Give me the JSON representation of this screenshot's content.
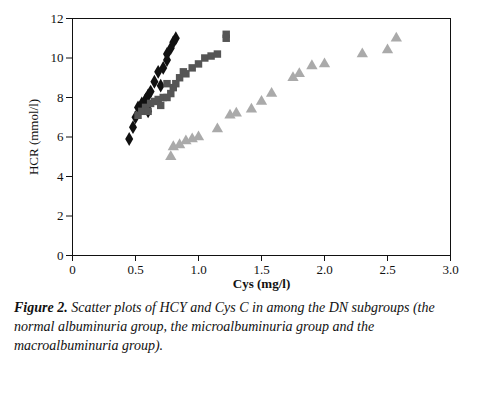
{
  "chart_data": {
    "type": "scatter",
    "x_label": "Cys (mg/l)",
    "y_label": "HCR (mmol/l)",
    "caption_label": "Figure 2.",
    "caption": "Scatter plots of HCY and Cys C in among the DN subgroups (the normal albuminuria group, the microalbuminuria group and the macroalbuminuria group).",
    "xlim": [
      0,
      3
    ],
    "xticks": [
      0,
      0.5,
      {
        "value": 1,
        "label": "1.0"
      },
      1.5,
      {
        "value": 2,
        "label": "2.0"
      },
      2.5,
      {
        "value": 3,
        "label": "3.0"
      }
    ],
    "ylim": [
      0,
      12
    ],
    "yticks": [
      0,
      2,
      4,
      6,
      8,
      10,
      12
    ],
    "series": [
      {
        "color": "#111111",
        "marker": "diamond",
        "x": [
          0.45,
          0.48,
          0.5,
          0.52,
          0.55,
          0.58,
          0.6,
          0.62,
          0.6,
          0.65,
          0.68,
          0.72,
          0.75,
          0.75,
          0.78,
          0.8,
          0.82,
          0.6,
          0.7
        ],
        "values": [
          5.9,
          6.5,
          7.0,
          7.5,
          7.7,
          7.9,
          8.1,
          8.3,
          7.6,
          8.8,
          9.3,
          9.5,
          9.9,
          10.2,
          10.5,
          10.8,
          11.0,
          7.3,
          8.6
        ]
      },
      {
        "color": "#555555",
        "marker": "square",
        "x": [
          0.52,
          0.55,
          0.58,
          0.6,
          0.62,
          0.65,
          0.68,
          0.7,
          0.72,
          0.75,
          0.78,
          0.8,
          0.82,
          0.85,
          0.88,
          0.9,
          0.95,
          1.0,
          1.05,
          1.1,
          1.15,
          1.22,
          1.22,
          0.75
        ],
        "values": [
          7.1,
          7.3,
          7.5,
          7.3,
          7.7,
          7.8,
          7.9,
          7.6,
          8.0,
          8.0,
          8.2,
          8.5,
          8.7,
          9.0,
          9.3,
          9.2,
          9.5,
          9.7,
          10.0,
          10.1,
          10.2,
          11.0,
          11.2,
          8.7
        ]
      },
      {
        "color": "#aaaaaa",
        "marker": "triangle",
        "x": [
          0.78,
          0.8,
          0.85,
          0.9,
          0.95,
          1.0,
          1.15,
          1.25,
          1.3,
          1.42,
          1.5,
          1.58,
          1.75,
          1.8,
          1.9,
          2.0,
          2.3,
          2.5,
          2.57
        ],
        "values": [
          5.0,
          5.5,
          5.6,
          5.8,
          5.9,
          6.0,
          6.4,
          7.1,
          7.2,
          7.4,
          7.8,
          8.2,
          9.0,
          9.2,
          9.6,
          9.7,
          10.2,
          10.4,
          11.0
        ]
      }
    ]
  }
}
